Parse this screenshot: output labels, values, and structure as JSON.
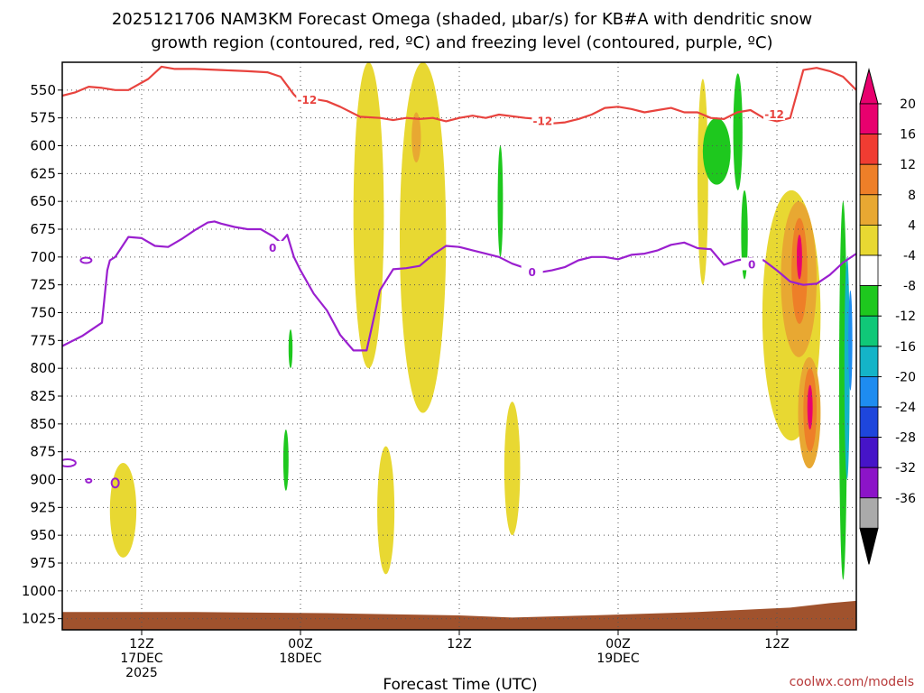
{
  "chart_data": {
    "type": "heatmap",
    "title_line1": "2025121706 NAM3KM Forecast Omega (shaded, μbar/s) for KB#A with dendritic snow",
    "title_line2": "growth region (contoured, red, ºC) and freezing level (contoured, purple, ºC)",
    "xlabel": "Forecast Time (UTC)",
    "ylabel": "",
    "credit": "coolwx.com/models",
    "x_hours_range": [
      0,
      60
    ],
    "y_pressure_range": [
      1035,
      525
    ],
    "y_ticks": [
      550,
      575,
      600,
      625,
      650,
      675,
      700,
      725,
      750,
      775,
      800,
      825,
      850,
      875,
      900,
      925,
      950,
      975,
      1000,
      1025
    ],
    "x_ticks": [
      {
        "hour": 6,
        "line1": "12Z",
        "line2": "17DEC",
        "line3": "2025"
      },
      {
        "hour": 18,
        "line1": "00Z",
        "line2": "18DEC",
        "line3": ""
      },
      {
        "hour": 30,
        "line1": "12Z",
        "line2": "",
        "line3": ""
      },
      {
        "hour": 42,
        "line1": "00Z",
        "line2": "19DEC",
        "line3": ""
      },
      {
        "hour": 54,
        "line1": "12Z",
        "line2": "",
        "line3": ""
      }
    ],
    "colorbar": {
      "labels": [
        "20",
        "16",
        "12",
        "8",
        "4",
        "-4",
        "-8",
        "-12",
        "-16",
        "-20",
        "-24",
        "-28",
        "-32",
        "-36"
      ],
      "colors": [
        "#e8006e",
        "#f03c32",
        "#ee7f28",
        "#e8a832",
        "#e8d832",
        "#ffffff",
        "#1ec81e",
        "#10c878",
        "#14b4c8",
        "#1e8cf0",
        "#1e46dc",
        "#4614c8",
        "#8c14c8",
        "#aaaaaa"
      ],
      "top_arrow_color": "#e8006e",
      "bottom_arrow_color": "#000000"
    },
    "series": [
      {
        "name": "dendritic growth -12C (red)",
        "color": "#e8433e",
        "label": "-12",
        "label_points": [
          [
            18.5,
            559
          ],
          [
            36.3,
            578
          ],
          [
            53.8,
            572
          ]
        ],
        "points": [
          [
            0,
            555
          ],
          [
            1,
            552
          ],
          [
            2,
            547
          ],
          [
            3,
            548
          ],
          [
            4,
            550
          ],
          [
            5,
            550
          ],
          [
            6.5,
            540
          ],
          [
            7.5,
            529
          ],
          [
            8.5,
            531
          ],
          [
            10,
            531
          ],
          [
            12,
            532
          ],
          [
            14,
            533
          ],
          [
            15.5,
            534
          ],
          [
            16.5,
            538
          ],
          [
            17.5,
            554
          ],
          [
            18.2,
            562
          ],
          [
            19,
            558
          ],
          [
            20,
            560
          ],
          [
            21,
            565
          ],
          [
            22.5,
            574
          ],
          [
            24,
            575
          ],
          [
            25,
            577
          ],
          [
            26,
            575
          ],
          [
            27,
            576
          ],
          [
            28,
            575
          ],
          [
            29,
            578
          ],
          [
            30,
            575
          ],
          [
            31,
            573
          ],
          [
            32,
            575
          ],
          [
            33,
            572
          ],
          [
            35,
            575
          ],
          [
            36,
            576
          ],
          [
            37,
            580
          ],
          [
            38,
            579
          ],
          [
            39,
            576
          ],
          [
            40,
            572
          ],
          [
            41,
            566
          ],
          [
            42,
            565
          ],
          [
            43,
            567
          ],
          [
            44,
            570
          ],
          [
            45,
            568
          ],
          [
            46,
            566
          ],
          [
            47,
            570
          ],
          [
            48,
            570
          ],
          [
            49,
            575
          ],
          [
            50,
            576
          ],
          [
            51,
            570
          ],
          [
            52,
            568
          ],
          [
            53,
            575
          ],
          [
            54,
            578
          ],
          [
            55,
            575
          ],
          [
            56,
            532
          ],
          [
            57,
            530
          ],
          [
            58,
            533
          ],
          [
            59,
            538
          ],
          [
            60,
            550
          ]
        ]
      },
      {
        "name": "freezing level 0C (purple)",
        "color": "#9a1fcf",
        "label": "0",
        "label_points": [
          [
            15.9,
            692
          ],
          [
            35.5,
            714
          ],
          [
            52.1,
            707
          ]
        ],
        "points": [
          [
            0,
            780
          ],
          [
            1.5,
            771
          ],
          [
            3,
            759
          ],
          [
            3.4,
            712
          ],
          [
            3.6,
            703
          ],
          [
            4,
            700
          ],
          [
            5,
            682
          ],
          [
            6,
            683
          ],
          [
            7,
            690
          ],
          [
            8,
            691
          ],
          [
            9,
            684
          ],
          [
            10,
            676
          ],
          [
            11,
            669
          ],
          [
            11.5,
            668
          ],
          [
            12,
            670
          ],
          [
            13,
            673
          ],
          [
            14,
            675
          ],
          [
            15,
            675
          ],
          [
            16,
            682
          ],
          [
            16.5,
            687
          ],
          [
            17,
            680
          ],
          [
            17.5,
            700
          ],
          [
            18,
            712
          ],
          [
            19,
            733
          ],
          [
            20,
            748
          ],
          [
            21,
            770
          ],
          [
            22,
            784
          ],
          [
            23,
            784
          ],
          [
            24,
            730
          ],
          [
            25,
            711
          ],
          [
            26,
            710
          ],
          [
            27,
            708
          ],
          [
            28,
            698
          ],
          [
            29,
            690
          ],
          [
            30,
            691
          ],
          [
            31,
            694
          ],
          [
            32,
            697
          ],
          [
            33,
            700
          ],
          [
            34,
            706
          ],
          [
            35,
            710
          ],
          [
            36,
            714
          ],
          [
            37,
            712
          ],
          [
            38,
            709
          ],
          [
            39,
            703
          ],
          [
            40,
            700
          ],
          [
            41,
            700
          ],
          [
            42,
            702
          ],
          [
            43,
            698
          ],
          [
            44,
            697
          ],
          [
            45,
            694
          ],
          [
            46,
            689
          ],
          [
            47,
            687
          ],
          [
            48,
            692
          ],
          [
            49,
            693
          ],
          [
            50,
            707
          ],
          [
            51,
            703
          ],
          [
            52,
            701
          ],
          [
            53,
            703
          ],
          [
            54,
            712
          ],
          [
            55,
            722
          ],
          [
            56,
            725
          ],
          [
            57,
            724
          ],
          [
            58,
            716
          ],
          [
            59,
            705
          ],
          [
            60,
            697
          ]
        ]
      }
    ],
    "shaded_regions": [
      {
        "level": 4,
        "color": "#e8d832",
        "t0": 22.0,
        "t1": 24.3,
        "p_top": 525,
        "p_bottom": 800
      },
      {
        "level": 4,
        "color": "#e8d832",
        "t0": 25.5,
        "t1": 29.0,
        "p_top": 525,
        "p_bottom": 840
      },
      {
        "level": 8,
        "color": "#e8a832",
        "t0": 26.4,
        "t1": 27.1,
        "p_top": 570,
        "p_bottom": 615
      },
      {
        "level": 4,
        "color": "#e8d832",
        "t0": 23.8,
        "t1": 25.1,
        "p_top": 870,
        "p_bottom": 985
      },
      {
        "level": 4,
        "color": "#e8d832",
        "t0": 3.6,
        "t1": 5.6,
        "p_top": 885,
        "p_bottom": 970
      },
      {
        "level": 4,
        "color": "#e8d832",
        "t0": 33.4,
        "t1": 34.6,
        "p_top": 830,
        "p_bottom": 950
      },
      {
        "level": -4,
        "color": "#1ec81e",
        "t0": 32.9,
        "t1": 33.3,
        "p_top": 600,
        "p_bottom": 700
      },
      {
        "level": -4,
        "color": "#1ec81e",
        "t0": 17.1,
        "t1": 17.4,
        "p_top": 765,
        "p_bottom": 800
      },
      {
        "level": -4,
        "color": "#1ec81e",
        "t0": 16.7,
        "t1": 17.1,
        "p_top": 855,
        "p_bottom": 910
      },
      {
        "level": 4,
        "color": "#e8d832",
        "t0": 48.0,
        "t1": 48.8,
        "p_top": 540,
        "p_bottom": 725
      },
      {
        "level": -4,
        "color": "#1ec81e",
        "t0": 48.4,
        "t1": 50.5,
        "p_top": 575,
        "p_bottom": 635
      },
      {
        "level": -4,
        "color": "#1ec81e",
        "t0": 50.7,
        "t1": 51.4,
        "p_top": 535,
        "p_bottom": 640
      },
      {
        "level": -4,
        "color": "#1ec81e",
        "t0": 51.3,
        "t1": 51.8,
        "p_top": 640,
        "p_bottom": 720
      },
      {
        "level": 4,
        "color": "#e8d832",
        "t0": 52.9,
        "t1": 57.3,
        "p_top": 640,
        "p_bottom": 865
      },
      {
        "level": 8,
        "color": "#e8a832",
        "t0": 54.3,
        "t1": 57.0,
        "p_top": 650,
        "p_bottom": 790
      },
      {
        "level": 12,
        "color": "#ee7f28",
        "t0": 55.1,
        "t1": 56.3,
        "p_top": 665,
        "p_bottom": 760
      },
      {
        "level": 20,
        "color": "#e8006e",
        "t0": 55.5,
        "t1": 55.9,
        "p_top": 680,
        "p_bottom": 720
      },
      {
        "level": 8,
        "color": "#e8a832",
        "t0": 55.6,
        "t1": 57.3,
        "p_top": 790,
        "p_bottom": 890
      },
      {
        "level": 12,
        "color": "#ee7f28",
        "t0": 56.0,
        "t1": 57.0,
        "p_top": 800,
        "p_bottom": 875
      },
      {
        "level": 20,
        "color": "#e8006e",
        "t0": 56.3,
        "t1": 56.7,
        "p_top": 815,
        "p_bottom": 855
      },
      {
        "level": -4,
        "color": "#1ec81e",
        "t0": 58.7,
        "t1": 59.3,
        "p_top": 650,
        "p_bottom": 990
      },
      {
        "level": -12,
        "color": "#14b4c8",
        "t0": 59.1,
        "t1": 59.5,
        "p_top": 700,
        "p_bottom": 900
      },
      {
        "level": -16,
        "color": "#1e8cf0",
        "t0": 59.4,
        "t1": 59.7,
        "p_top": 730,
        "p_bottom": 820
      }
    ],
    "terrain": {
      "color": "#a0522d",
      "surface_points": [
        [
          0,
          1019
        ],
        [
          10,
          1019
        ],
        [
          20,
          1020
        ],
        [
          30,
          1022
        ],
        [
          34,
          1024
        ],
        [
          40,
          1022
        ],
        [
          48,
          1019
        ],
        [
          55,
          1015
        ],
        [
          58,
          1011
        ],
        [
          60,
          1009
        ]
      ]
    }
  }
}
